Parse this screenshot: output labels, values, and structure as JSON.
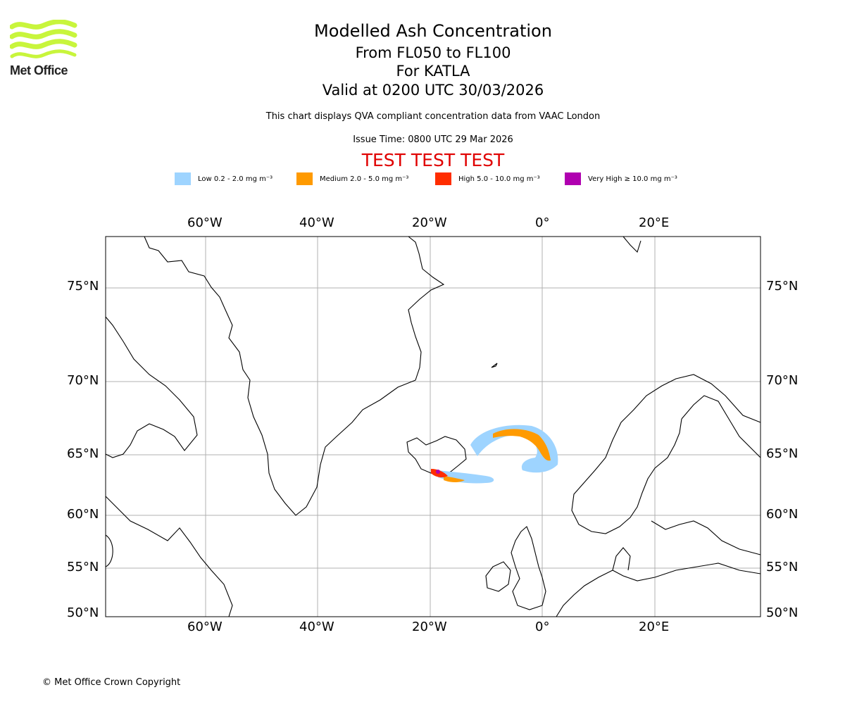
{
  "logo": {
    "name": "Met Office",
    "icon": "met-office-wave-logo",
    "color": "#c8f53c"
  },
  "title": {
    "main": "Modelled Ash Concentration",
    "levels": "From FL050 to FL100",
    "volcano": "For KATLA",
    "valid": "Valid at 0200 UTC 30/03/2026"
  },
  "subtitle": "This chart displays QVA compliant concentration data from VAAC London",
  "issue_time": "Issue Time: 0800 UTC 29 Mar 2026",
  "test_banner": "TEST TEST TEST",
  "legend": [
    {
      "label": "Low 0.2 - 2.0 mg m⁻³",
      "color": "#9ed4ff"
    },
    {
      "label": "Medium 2.0 - 5.0 mg m⁻³",
      "color": "#ff9a00"
    },
    {
      "label": "High 5.0 - 10.0 mg m⁻³",
      "color": "#ff2d00"
    },
    {
      "label": "Very High ≥ 10.0 mg m⁻³",
      "color": "#b000b0"
    }
  ],
  "map": {
    "lon_labels": [
      "60°W",
      "40°W",
      "20°W",
      "0°",
      "20°E"
    ],
    "lat_labels": [
      "75°N",
      "70°N",
      "65°N",
      "60°N",
      "55°N",
      "50°N"
    ],
    "gridline_color": "#b0b0b0"
  },
  "copyright": "© Met Office Crown Copyright"
}
